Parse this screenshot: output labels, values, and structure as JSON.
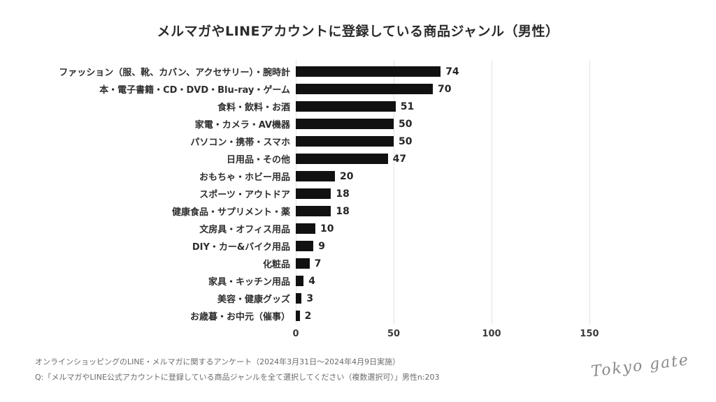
{
  "title": "メルマガやLINEアカウントに登録している商品ジャンル（男性）",
  "chart_data": {
    "type": "bar",
    "orientation": "horizontal",
    "title": "メルマガやLINEアカウントに登録している商品ジャンル（男性）",
    "categories": [
      "ファッション（服、靴、カバン、アクセサリー）・腕時計",
      "本・電子書籍・CD・DVD・Blu-ray・ゲーム",
      "食料・飲料・お酒",
      "家電・カメラ・AV機器",
      "パソコン・携帯・スマホ",
      "日用品・その他",
      "おもちゃ・ホビー用品",
      "スポーツ・アウトドア",
      "健康食品・サプリメント・薬",
      "文房具・オフィス用品",
      "DIY・カー&バイク用品",
      "化粧品",
      "家具・キッチン用品",
      "美容・健康グッズ",
      "お歳暮・お中元（催事）"
    ],
    "values": [
      74,
      70,
      51,
      50,
      50,
      47,
      20,
      18,
      18,
      10,
      9,
      7,
      4,
      3,
      2
    ],
    "xlabel": "",
    "ylabel": "",
    "xlim": [
      0,
      157
    ],
    "xticks": [
      0,
      50,
      100,
      150
    ],
    "grid": true,
    "legend": false,
    "bar_color": "#111111"
  },
  "footer": {
    "line1": "オンラインショッピングのLINE・メルマガに関するアンケート（2024年3月31日〜2024年4月9日実施）",
    "line2": "Q:「メルマガやLINE公式アカウントに登録している商品ジャンルを全て選択してください（複数選択可）」男性n:203"
  },
  "logo": {
    "text": "Tokyo gate"
  },
  "colors": {
    "bar": "#111111",
    "grid": "#e3e3e3",
    "title_text": "#2b2b2b",
    "label_text": "#2e2e2e",
    "muted_text": "#6b6b6b",
    "logo_text": "#8a8a8a",
    "background": "#ffffff"
  }
}
